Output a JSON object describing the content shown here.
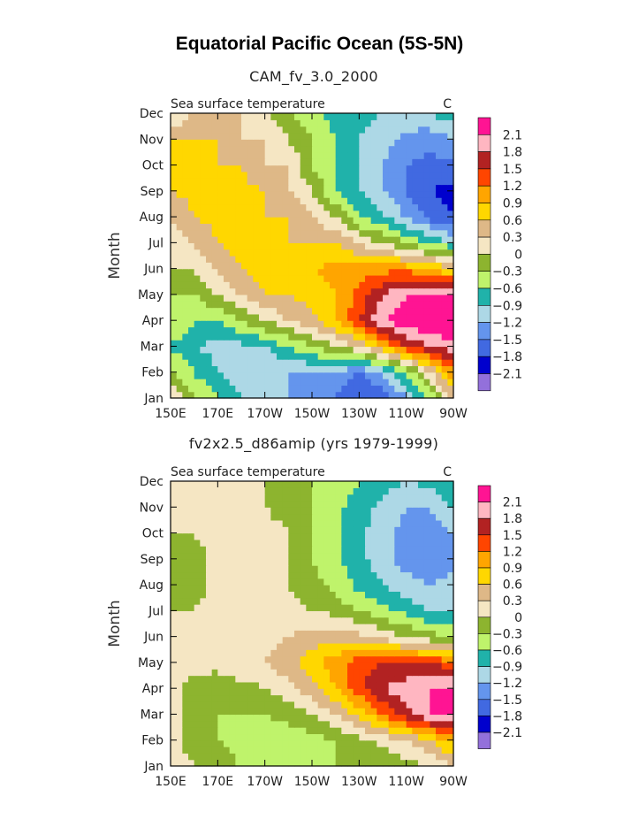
{
  "title": "Equatorial Pacific Ocean (5S-5N)",
  "colors": [
    "#9370DB",
    "#0000CD",
    "#4169E1",
    "#6495ED",
    "#ADD8E6",
    "#20B2AA",
    "#BFF36B",
    "#8DB42F",
    "#F5E6C3",
    "#DEB887",
    "#FFD700",
    "#FFA500",
    "#FF4500",
    "#B22222",
    "#FFB6C1",
    "#FF1493"
  ],
  "chart_data": [
    {
      "type": "heatmap",
      "title": "CAM_fv_3.0_2000",
      "subtitle": "Sea surface temperature",
      "units": "C",
      "xlabel": "",
      "ylabel": "Month",
      "x_ticks": [
        "150E",
        "170E",
        "170W",
        "150W",
        "130W",
        "110W",
        "90W"
      ],
      "y_ticks": [
        "Jan",
        "Feb",
        "Mar",
        "Apr",
        "May",
        "Jun",
        "Jul",
        "Aug",
        "Sep",
        "Oct",
        "Nov",
        "Dec"
      ],
      "levels": [
        "-2.1",
        "-1.8",
        "-1.5",
        "-1.2",
        "-0.9",
        "-0.6",
        "-0.3",
        "0",
        "0.3",
        "0.6",
        "0.9",
        "1.2",
        "1.5",
        "1.8",
        "2.1"
      ],
      "x_lon": [
        150,
        160,
        170,
        180,
        190,
        200,
        210,
        220,
        230,
        240,
        250,
        260,
        270
      ],
      "values": [
        [
          0.3,
          -0.3,
          -0.6,
          -0.9,
          -1.2,
          -1.2,
          -1.3,
          -1.5,
          -1.8,
          -1.8,
          -1.2,
          -0.6,
          0.3
        ],
        [
          -0.3,
          -0.6,
          -0.9,
          -1.2,
          -1.2,
          -1.2,
          -1.2,
          -1.3,
          -1.5,
          -1.2,
          -0.6,
          0.3,
          1.2
        ],
        [
          -0.6,
          -0.9,
          -1.0,
          -1.0,
          -0.9,
          -0.6,
          -0.3,
          0.0,
          0.3,
          0.9,
          1.5,
          1.8,
          2.0
        ],
        [
          -0.3,
          -0.6,
          -0.6,
          -0.3,
          0.0,
          0.3,
          0.5,
          0.9,
          1.5,
          2.1,
          2.3,
          2.4,
          2.4
        ],
        [
          -0.3,
          -0.3,
          0.0,
          0.3,
          0.6,
          0.6,
          0.7,
          0.9,
          1.3,
          1.8,
          2.1,
          2.2,
          2.2
        ],
        [
          0.0,
          0.0,
          0.3,
          0.6,
          0.8,
          0.9,
          0.9,
          1.0,
          1.0,
          1.1,
          1.1,
          0.9,
          0.6
        ],
        [
          0.0,
          0.3,
          0.6,
          0.8,
          0.7,
          0.6,
          0.6,
          0.6,
          0.3,
          0.0,
          -0.3,
          -0.6,
          -0.9
        ],
        [
          0.3,
          0.6,
          0.7,
          0.7,
          0.6,
          0.6,
          0.3,
          0.0,
          -0.6,
          -0.9,
          -1.2,
          -1.6,
          -1.8
        ],
        [
          0.6,
          0.7,
          0.7,
          0.7,
          0.6,
          0.3,
          0.0,
          -0.6,
          -0.9,
          -1.2,
          -1.5,
          -1.8,
          -1.9
        ],
        [
          0.6,
          0.7,
          0.6,
          0.6,
          0.3,
          0.3,
          -0.3,
          -0.6,
          -0.9,
          -1.2,
          -1.5,
          -1.6,
          -1.6
        ],
        [
          0.6,
          0.6,
          0.6,
          0.3,
          0.3,
          0.0,
          -0.3,
          -0.6,
          -0.9,
          -1.1,
          -1.3,
          -1.4,
          -1.2
        ],
        [
          0.0,
          0.3,
          0.3,
          0.3,
          0.0,
          -0.3,
          -0.5,
          -0.7,
          -0.8,
          -0.9,
          -1.0,
          -0.9,
          -0.7
        ]
      ]
    },
    {
      "type": "heatmap",
      "title": "fv2x2.5_d86amip (yrs 1979-1999)",
      "subtitle": "Sea surface temperature",
      "units": "C",
      "xlabel": "",
      "ylabel": "Month",
      "x_ticks": [
        "150E",
        "170E",
        "170W",
        "150W",
        "130W",
        "110W",
        "90W"
      ],
      "y_ticks": [
        "Jan",
        "Feb",
        "Mar",
        "Apr",
        "May",
        "Jun",
        "Jul",
        "Aug",
        "Sep",
        "Oct",
        "Nov",
        "Dec"
      ],
      "levels": [
        "-2.1",
        "-1.8",
        "-1.5",
        "-1.2",
        "-0.9",
        "-0.6",
        "-0.3",
        "0",
        "0.3",
        "0.6",
        "0.9",
        "1.2",
        "1.5",
        "1.8",
        "2.1"
      ],
      "x_lon": [
        150,
        160,
        170,
        180,
        190,
        200,
        210,
        220,
        230,
        240,
        250,
        260,
        270
      ],
      "values": [
        [
          0.1,
          0.0,
          -0.2,
          -0.3,
          -0.4,
          -0.4,
          -0.4,
          -0.3,
          -0.3,
          -0.3,
          -0.1,
          0.0,
          0.3
        ],
        [
          0.1,
          -0.1,
          -0.3,
          -0.4,
          -0.5,
          -0.5,
          -0.4,
          -0.3,
          -0.1,
          0.1,
          0.3,
          0.6,
          1.0
        ],
        [
          0.1,
          -0.1,
          -0.3,
          -0.3,
          -0.3,
          -0.2,
          0.0,
          0.3,
          0.7,
          1.2,
          1.7,
          2.1,
          2.2
        ],
        [
          0.1,
          -0.1,
          -0.2,
          -0.1,
          0.0,
          0.2,
          0.5,
          0.9,
          1.4,
          1.8,
          2.0,
          2.1,
          2.1
        ],
        [
          0.1,
          0.1,
          0.1,
          0.2,
          0.3,
          0.5,
          0.8,
          1.1,
          1.4,
          1.5,
          1.5,
          1.5,
          1.3
        ],
        [
          0.1,
          0.1,
          0.2,
          0.2,
          0.2,
          0.3,
          0.4,
          0.5,
          0.4,
          0.2,
          0.0,
          -0.2,
          -0.3
        ],
        [
          0.0,
          0.0,
          0.1,
          0.1,
          0.1,
          0.1,
          0.0,
          -0.1,
          -0.3,
          -0.5,
          -0.7,
          -0.9,
          -0.9
        ],
        [
          -0.1,
          -0.1,
          0.1,
          0.1,
          0.1,
          0.0,
          -0.2,
          -0.4,
          -0.7,
          -0.9,
          -1.1,
          -1.2,
          -1.1
        ],
        [
          -0.1,
          -0.1,
          0.1,
          0.1,
          0.1,
          0.0,
          -0.3,
          -0.5,
          -0.8,
          -1.1,
          -1.3,
          -1.4,
          -1.3
        ],
        [
          0.0,
          0.0,
          0.1,
          0.1,
          0.1,
          0.0,
          -0.3,
          -0.5,
          -0.8,
          -1.1,
          -1.3,
          -1.4,
          -1.2
        ],
        [
          0.0,
          0.1,
          0.1,
          0.1,
          0.0,
          -0.1,
          -0.3,
          -0.5,
          -0.8,
          -1.0,
          -1.2,
          -1.2,
          -0.9
        ],
        [
          0.1,
          0.1,
          0.1,
          0.1,
          0.0,
          -0.1,
          -0.3,
          -0.4,
          -0.6,
          -0.8,
          -0.9,
          -0.8,
          -0.6
        ]
      ]
    }
  ]
}
